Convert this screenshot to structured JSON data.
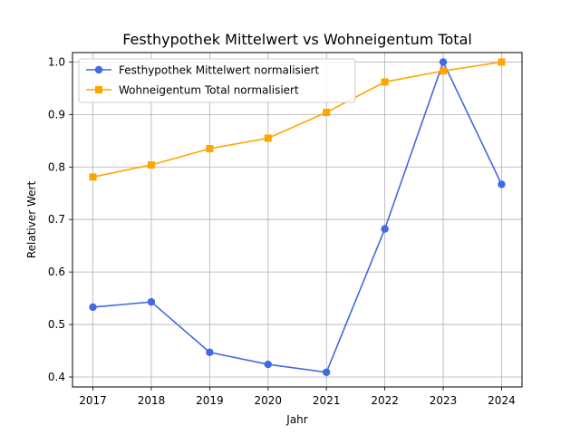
{
  "chart_data": {
    "type": "line",
    "title": "Festhypothek Mittelwert vs Wohneigentum Total",
    "xlabel": "Jahr",
    "ylabel": "Relativer Wert",
    "x": [
      2017,
      2018,
      2019,
      2020,
      2021,
      2022,
      2023,
      2024
    ],
    "xlim": [
      2016.65,
      2024.35
    ],
    "ylim": [
      0.381,
      1.018
    ],
    "yticks": [
      "0.4",
      "0.5",
      "0.6",
      "0.7",
      "0.8",
      "0.9",
      "1.0"
    ],
    "grid": true,
    "legend": "top-left",
    "series": [
      {
        "name": "Festhypothek Mittelwert normalisiert",
        "color": "#4169e1",
        "marker": "circle",
        "values": [
          0.533,
          0.543,
          0.447,
          0.424,
          0.409,
          0.682,
          1.0,
          0.767
        ]
      },
      {
        "name": "Wohneigentum Total normalisiert",
        "color": "#ffa500",
        "marker": "square",
        "values": [
          0.781,
          0.804,
          0.835,
          0.855,
          0.904,
          0.962,
          0.983,
          1.0
        ]
      }
    ]
  }
}
